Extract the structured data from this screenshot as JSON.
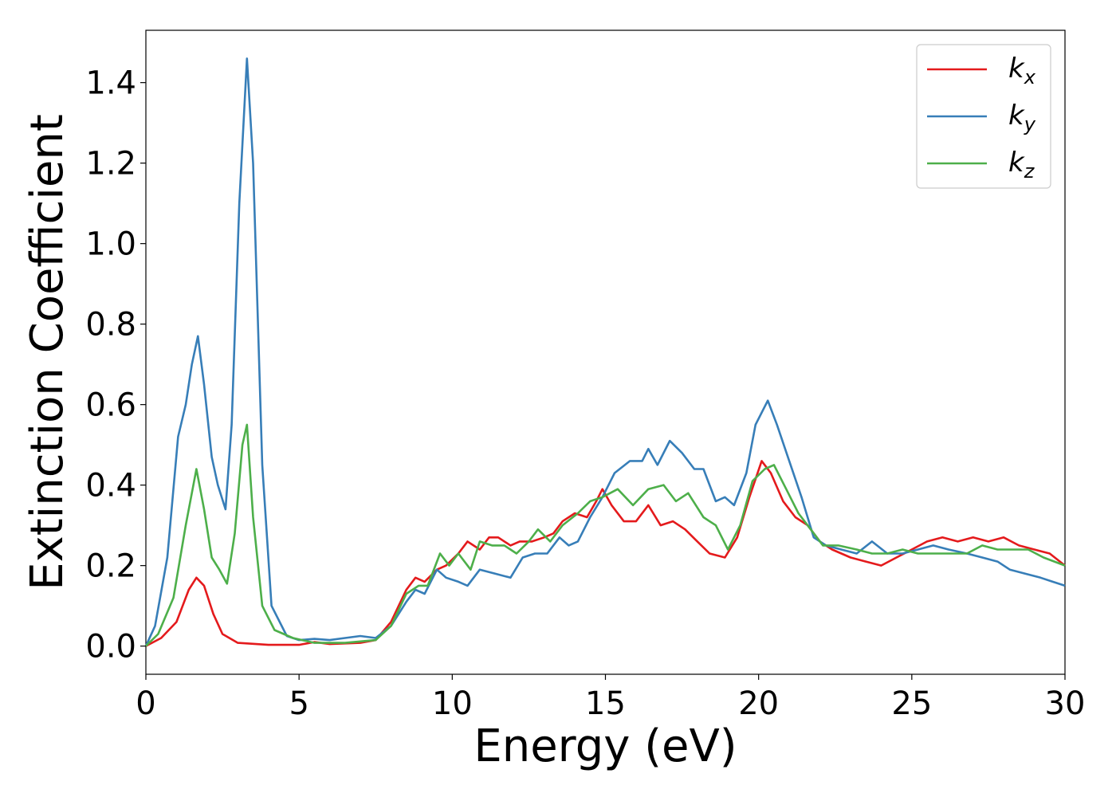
{
  "chart_data": {
    "type": "line",
    "xlabel": "Energy (eV)",
    "ylabel": "Extinction Coefficient",
    "xlim": [
      0,
      30
    ],
    "ylim": [
      -0.07,
      1.53
    ],
    "xticks": [
      0,
      5,
      10,
      15,
      20,
      25,
      30
    ],
    "yticks": [
      0.0,
      0.2,
      0.4,
      0.6,
      0.8,
      1.0,
      1.2,
      1.4
    ],
    "grid": false,
    "legend_position": "top-right",
    "series": [
      {
        "name": "k",
        "subscript": "x",
        "color": "#e41a1c",
        "points": [
          [
            0,
            0
          ],
          [
            0.5,
            0.02
          ],
          [
            1.0,
            0.06
          ],
          [
            1.4,
            0.14
          ],
          [
            1.65,
            0.17
          ],
          [
            1.9,
            0.15
          ],
          [
            2.2,
            0.08
          ],
          [
            2.5,
            0.03
          ],
          [
            3.0,
            0.008
          ],
          [
            4,
            0.003
          ],
          [
            5,
            0.003
          ],
          [
            5.5,
            0.01
          ],
          [
            6,
            0.005
          ],
          [
            7,
            0.008
          ],
          [
            7.5,
            0.015
          ],
          [
            8,
            0.06
          ],
          [
            8.5,
            0.14
          ],
          [
            8.8,
            0.17
          ],
          [
            9.1,
            0.16
          ],
          [
            9.5,
            0.19
          ],
          [
            9.8,
            0.2
          ],
          [
            10.2,
            0.23
          ],
          [
            10.5,
            0.26
          ],
          [
            10.9,
            0.24
          ],
          [
            11.2,
            0.27
          ],
          [
            11.5,
            0.27
          ],
          [
            11.9,
            0.25
          ],
          [
            12.2,
            0.26
          ],
          [
            12.6,
            0.26
          ],
          [
            13,
            0.27
          ],
          [
            13.3,
            0.28
          ],
          [
            13.6,
            0.31
          ],
          [
            14,
            0.33
          ],
          [
            14.4,
            0.32
          ],
          [
            14.7,
            0.36
          ],
          [
            14.9,
            0.39
          ],
          [
            15.2,
            0.35
          ],
          [
            15.6,
            0.31
          ],
          [
            16,
            0.31
          ],
          [
            16.4,
            0.35
          ],
          [
            16.8,
            0.3
          ],
          [
            17.2,
            0.31
          ],
          [
            17.6,
            0.29
          ],
          [
            18.0,
            0.26
          ],
          [
            18.4,
            0.23
          ],
          [
            18.9,
            0.22
          ],
          [
            19.3,
            0.27
          ],
          [
            19.7,
            0.37
          ],
          [
            20.1,
            0.46
          ],
          [
            20.4,
            0.43
          ],
          [
            20.8,
            0.36
          ],
          [
            21.2,
            0.32
          ],
          [
            21.6,
            0.3
          ],
          [
            22.0,
            0.26
          ],
          [
            22.4,
            0.24
          ],
          [
            23,
            0.22
          ],
          [
            23.5,
            0.21
          ],
          [
            24,
            0.2
          ],
          [
            24.5,
            0.22
          ],
          [
            25,
            0.24
          ],
          [
            25.5,
            0.26
          ],
          [
            26,
            0.27
          ],
          [
            26.5,
            0.26
          ],
          [
            27,
            0.27
          ],
          [
            27.5,
            0.26
          ],
          [
            28,
            0.27
          ],
          [
            28.5,
            0.25
          ],
          [
            29,
            0.24
          ],
          [
            29.5,
            0.23
          ],
          [
            30,
            0.2
          ]
        ]
      },
      {
        "name": "k",
        "subscript": "y",
        "color": "#377eb8",
        "points": [
          [
            0,
            0
          ],
          [
            0.3,
            0.05
          ],
          [
            0.7,
            0.22
          ],
          [
            1.05,
            0.52
          ],
          [
            1.3,
            0.6
          ],
          [
            1.5,
            0.7
          ],
          [
            1.7,
            0.77
          ],
          [
            1.9,
            0.65
          ],
          [
            2.15,
            0.47
          ],
          [
            2.35,
            0.4
          ],
          [
            2.6,
            0.34
          ],
          [
            2.8,
            0.55
          ],
          [
            3.05,
            1.1
          ],
          [
            3.3,
            1.46
          ],
          [
            3.5,
            1.2
          ],
          [
            3.8,
            0.45
          ],
          [
            4.1,
            0.1
          ],
          [
            4.6,
            0.025
          ],
          [
            5,
            0.015
          ],
          [
            5.5,
            0.018
          ],
          [
            6,
            0.015
          ],
          [
            6.5,
            0.02
          ],
          [
            7,
            0.025
          ],
          [
            7.5,
            0.02
          ],
          [
            8,
            0.05
          ],
          [
            8.5,
            0.11
          ],
          [
            8.8,
            0.14
          ],
          [
            9.1,
            0.13
          ],
          [
            9.5,
            0.19
          ],
          [
            9.8,
            0.17
          ],
          [
            10.2,
            0.16
          ],
          [
            10.5,
            0.15
          ],
          [
            10.9,
            0.19
          ],
          [
            11.4,
            0.18
          ],
          [
            11.9,
            0.17
          ],
          [
            12.3,
            0.22
          ],
          [
            12.7,
            0.23
          ],
          [
            13.1,
            0.23
          ],
          [
            13.5,
            0.27
          ],
          [
            13.8,
            0.25
          ],
          [
            14.1,
            0.26
          ],
          [
            14.5,
            0.32
          ],
          [
            14.9,
            0.37
          ],
          [
            15.3,
            0.43
          ],
          [
            15.8,
            0.46
          ],
          [
            16.2,
            0.46
          ],
          [
            16.4,
            0.49
          ],
          [
            16.7,
            0.45
          ],
          [
            17.1,
            0.51
          ],
          [
            17.5,
            0.48
          ],
          [
            17.9,
            0.44
          ],
          [
            18.2,
            0.44
          ],
          [
            18.6,
            0.36
          ],
          [
            18.9,
            0.37
          ],
          [
            19.2,
            0.35
          ],
          [
            19.6,
            0.43
          ],
          [
            19.9,
            0.55
          ],
          [
            20.3,
            0.61
          ],
          [
            20.6,
            0.55
          ],
          [
            21.0,
            0.46
          ],
          [
            21.4,
            0.37
          ],
          [
            21.8,
            0.27
          ],
          [
            22.2,
            0.25
          ],
          [
            22.7,
            0.24
          ],
          [
            23.2,
            0.23
          ],
          [
            23.7,
            0.26
          ],
          [
            24.2,
            0.23
          ],
          [
            24.7,
            0.23
          ],
          [
            25.2,
            0.24
          ],
          [
            25.7,
            0.25
          ],
          [
            26.2,
            0.24
          ],
          [
            26.8,
            0.23
          ],
          [
            27.3,
            0.22
          ],
          [
            27.8,
            0.21
          ],
          [
            28.2,
            0.19
          ],
          [
            28.7,
            0.18
          ],
          [
            29.2,
            0.17
          ],
          [
            29.6,
            0.16
          ],
          [
            30,
            0.15
          ]
        ]
      },
      {
        "name": "k",
        "subscript": "z",
        "color": "#4daf4a",
        "points": [
          [
            0,
            0
          ],
          [
            0.4,
            0.03
          ],
          [
            0.9,
            0.12
          ],
          [
            1.3,
            0.3
          ],
          [
            1.65,
            0.44
          ],
          [
            1.9,
            0.34
          ],
          [
            2.15,
            0.22
          ],
          [
            2.4,
            0.19
          ],
          [
            2.65,
            0.155
          ],
          [
            2.9,
            0.28
          ],
          [
            3.15,
            0.5
          ],
          [
            3.3,
            0.55
          ],
          [
            3.5,
            0.32
          ],
          [
            3.8,
            0.1
          ],
          [
            4.2,
            0.04
          ],
          [
            4.8,
            0.02
          ],
          [
            5.5,
            0.008
          ],
          [
            6.5,
            0.008
          ],
          [
            7.5,
            0.015
          ],
          [
            8,
            0.05
          ],
          [
            8.5,
            0.13
          ],
          [
            8.9,
            0.15
          ],
          [
            9.2,
            0.15
          ],
          [
            9.6,
            0.23
          ],
          [
            9.9,
            0.2
          ],
          [
            10.2,
            0.23
          ],
          [
            10.6,
            0.19
          ],
          [
            10.9,
            0.26
          ],
          [
            11.3,
            0.25
          ],
          [
            11.7,
            0.25
          ],
          [
            12.1,
            0.23
          ],
          [
            12.5,
            0.26
          ],
          [
            12.8,
            0.29
          ],
          [
            13.2,
            0.26
          ],
          [
            13.6,
            0.3
          ],
          [
            14.1,
            0.33
          ],
          [
            14.5,
            0.36
          ],
          [
            14.9,
            0.37
          ],
          [
            15.4,
            0.39
          ],
          [
            15.9,
            0.35
          ],
          [
            16.4,
            0.39
          ],
          [
            16.9,
            0.4
          ],
          [
            17.3,
            0.36
          ],
          [
            17.7,
            0.38
          ],
          [
            18.2,
            0.32
          ],
          [
            18.6,
            0.3
          ],
          [
            19.0,
            0.24
          ],
          [
            19.4,
            0.3
          ],
          [
            19.8,
            0.41
          ],
          [
            20.2,
            0.44
          ],
          [
            20.5,
            0.45
          ],
          [
            20.9,
            0.39
          ],
          [
            21.3,
            0.33
          ],
          [
            21.7,
            0.29
          ],
          [
            22.1,
            0.25
          ],
          [
            22.6,
            0.25
          ],
          [
            23.2,
            0.24
          ],
          [
            23.7,
            0.23
          ],
          [
            24.2,
            0.23
          ],
          [
            24.7,
            0.24
          ],
          [
            25.2,
            0.23
          ],
          [
            25.7,
            0.23
          ],
          [
            26.3,
            0.23
          ],
          [
            26.8,
            0.23
          ],
          [
            27.3,
            0.25
          ],
          [
            27.8,
            0.24
          ],
          [
            28.3,
            0.24
          ],
          [
            28.8,
            0.24
          ],
          [
            29.3,
            0.22
          ],
          [
            30,
            0.2
          ]
        ]
      }
    ]
  }
}
